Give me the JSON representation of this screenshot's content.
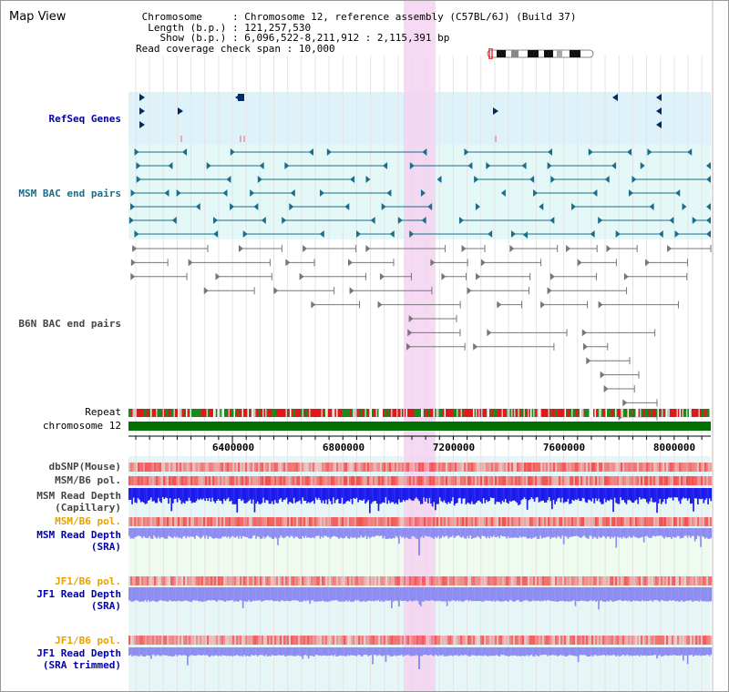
{
  "window": {
    "title": "Map View"
  },
  "info": {
    "chromosome_label": "Chromosome",
    "chromosome_value": "Chromosome 12, reference assembly (C57BL/6J) (Build 37)",
    "length_label": "Length (b.p.)",
    "length_value": "121,257,530",
    "show_label": "Show (b.p.)",
    "show_value": "6,096,522-8,211,912 : 2,115,391 bp",
    "span_label": "Read coverage check span",
    "span_value": "10,000"
  },
  "tracks": {
    "refseq": "RefSeq Genes",
    "msm_bac": "MSM BAC end pairs",
    "b6n_bac": "B6N BAC end pairs",
    "repeat": "Repeat",
    "chromosome": "chromosome 12",
    "dbsnp": "dbSNP(Mouse)",
    "msm_pol_1": "MSM/B6 pol.",
    "msm_depth_cap_1": "MSM Read Depth",
    "msm_depth_cap_2": "(Capillary)",
    "msm_pol_2": "MSM/B6 pol.",
    "msm_depth_sra_1": "MSM Read Depth",
    "msm_depth_sra_2": "(SRA)",
    "jf1_pol_1": "JF1/B6 pol.",
    "jf1_depth_sra_1": "JF1 Read Depth",
    "jf1_depth_sra_2": "(SRA)",
    "jf1_pol_2": "JF1/B6 pol.",
    "jf1_depth_trim_1": "JF1 Read Depth",
    "jf1_depth_trim_2": "(SRA trimmed)"
  },
  "axis": {
    "ticks": [
      "6400000",
      "6800000",
      "7200000",
      "7600000",
      "8000000"
    ]
  },
  "colors": {
    "refseq_bg": "#def2fa",
    "msm_bg": "#e4f8f8",
    "b6n_bg": "#ffffff",
    "highlight": "#f5d2f0",
    "chromosome": "#007000",
    "depth_blue": "#1a1aee",
    "depth_lightblue": "#8c8cf2",
    "pol_red": "#f45050",
    "refseq_navy": "#002b66",
    "msm_teal": "#1a6e8a",
    "b6n_gray": "#777777"
  }
}
